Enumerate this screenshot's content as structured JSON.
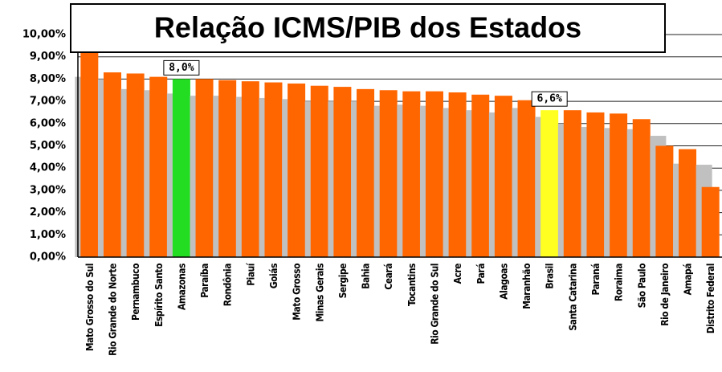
{
  "chart_data": {
    "type": "bar",
    "title": "Relação ICMS/PIB dos Estados",
    "categories": [
      "Mato Grosso do Sul",
      "Rio Grande do Norte",
      "Pernambuco",
      "Espírito Santo",
      "Amazonas",
      "Paraíba",
      "Rondônia",
      "Piauí",
      "Goiás",
      "Mato Grosso",
      "Minas Gerais",
      "Sergipe",
      "Bahia",
      "Ceará",
      "Tocantins",
      "Rio Grande do Sul",
      "Acre",
      "Pará",
      "Alagoas",
      "Maranhão",
      "Brasil",
      "Santa Catarina",
      "Paraná",
      "Roraima",
      "São Paulo",
      "Rio de Janeiro",
      "Amapá",
      "Distrito Federal"
    ],
    "series": [
      {
        "color": "#c0c0c0",
        "values": [
          8.1,
          8.0,
          7.55,
          7.5,
          7.35,
          7.25,
          7.25,
          7.2,
          7.15,
          7.1,
          7.0,
          7.0,
          7.0,
          6.8,
          6.85,
          6.8,
          6.7,
          6.6,
          6.5,
          6.7,
          6.3,
          6.0,
          5.85,
          5.8,
          5.75,
          5.45,
          4.2,
          4.15
        ]
      },
      {
        "color": "#ff6600",
        "colors": [
          "#ff6600",
          "#ff6600",
          "#ff6600",
          "#ff6600",
          "#22dd22",
          "#ff6600",
          "#ff6600",
          "#ff6600",
          "#ff6600",
          "#ff6600",
          "#ff6600",
          "#ff6600",
          "#ff6600",
          "#ff6600",
          "#ff6600",
          "#ff6600",
          "#ff6600",
          "#ff6600",
          "#ff6600",
          "#ff6600",
          "#ffff22",
          "#ff6600",
          "#ff6600",
          "#ff6600",
          "#ff6600",
          "#ff6600",
          "#ff6600",
          "#ff6600"
        ],
        "values": [
          9.3,
          8.3,
          8.25,
          8.1,
          8.0,
          8.0,
          7.95,
          7.9,
          7.85,
          7.8,
          7.7,
          7.65,
          7.55,
          7.5,
          7.45,
          7.45,
          7.4,
          7.3,
          7.25,
          7.05,
          6.6,
          6.6,
          6.5,
          6.45,
          6.2,
          5.0,
          4.85,
          3.15
        ],
        "value_labels": [
          null,
          null,
          null,
          null,
          "8,0%",
          null,
          null,
          null,
          null,
          null,
          null,
          null,
          null,
          null,
          null,
          null,
          null,
          null,
          null,
          null,
          "6,6%",
          null,
          null,
          null,
          null,
          null,
          null,
          null
        ]
      }
    ],
    "ylim": [
      0,
      10
    ],
    "yticks": [
      {
        "value": 0,
        "label": "0,00%"
      },
      {
        "value": 1,
        "label": "1,00%"
      },
      {
        "value": 2,
        "label": "2,00%"
      },
      {
        "value": 3,
        "label": "3,00%"
      },
      {
        "value": 4,
        "label": "4,00%"
      },
      {
        "value": 5,
        "label": "5,00%"
      },
      {
        "value": 6,
        "label": "6,00%"
      },
      {
        "value": 7,
        "label": "7,00%"
      },
      {
        "value": 8,
        "label": "8,00%"
      },
      {
        "value": 9,
        "label": "9,00%"
      },
      {
        "value": 10,
        "label": "10,00%"
      }
    ],
    "grid": true
  }
}
